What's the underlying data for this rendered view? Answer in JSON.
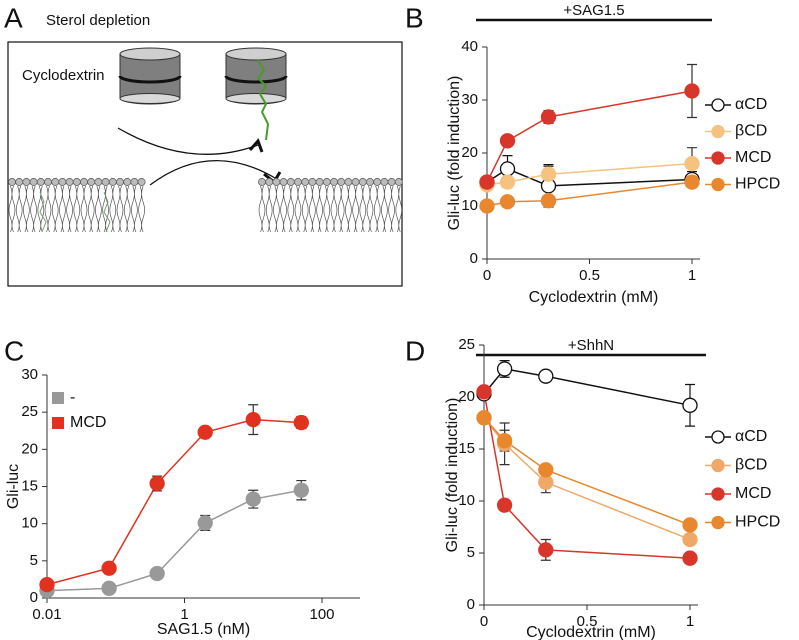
{
  "panel_a": {
    "panel": "A",
    "title": "Sterol depletion",
    "label": "Cyclodextrin"
  },
  "chart_data": [
    {
      "type": "line",
      "panel": "B",
      "title": "+SAG1.5",
      "x_label": "Cyclodextrin (mM)",
      "y_label": "Gli-luc (fold induction)",
      "x": [
        0,
        0.1,
        0.3,
        1
      ],
      "xlim": [
        0,
        1
      ],
      "xticks": [
        0,
        0.5,
        1
      ],
      "ylim": [
        0,
        40
      ],
      "yticks": [
        0,
        10,
        20,
        30,
        40
      ],
      "series": [
        {
          "name": "αCD",
          "color": "#111111",
          "marker_fill": "#ffffff",
          "values": [
            14.5,
            17,
            13.8,
            15
          ],
          "errors": [
            0,
            2.5,
            4,
            1.5
          ]
        },
        {
          "name": "βCD",
          "color": "#f5c27f",
          "values": [
            14,
            14.5,
            16,
            18
          ],
          "errors": [
            0,
            1,
            1.5,
            3
          ]
        },
        {
          "name": "MCD",
          "color": "#d8352b",
          "values": [
            14.5,
            22.3,
            26.8,
            31.7
          ],
          "errors": [
            0,
            0,
            1.2,
            5
          ]
        },
        {
          "name": "HPCD",
          "color": "#e8872e",
          "values": [
            10,
            10.8,
            11,
            14.5
          ],
          "errors": [
            0,
            0,
            0,
            0
          ]
        }
      ]
    },
    {
      "type": "line",
      "panel": "C",
      "x_label": "SAG1.5 (nM)",
      "y_label": "Gli-luc",
      "log_x": true,
      "x": [
        0.01,
        0.08,
        0.4,
        2,
        10,
        50
      ],
      "xlim": [
        0.01,
        100
      ],
      "xticks": [
        0.01,
        1,
        100
      ],
      "ylim": [
        0,
        30
      ],
      "yticks": [
        0,
        5,
        10,
        15,
        20,
        25,
        30
      ],
      "legend_marker": "square",
      "series": [
        {
          "name": "-",
          "color": "#999999",
          "values": [
            1,
            1.3,
            3.3,
            10.1,
            13.3,
            14.5
          ],
          "errors": [
            0,
            0,
            0,
            1,
            1.2,
            1.3
          ]
        },
        {
          "name": "MCD",
          "color": "#e0321e",
          "values": [
            1.8,
            4,
            15.4,
            22.3,
            24,
            23.6
          ],
          "errors": [
            0,
            0,
            1,
            0,
            2,
            0.8
          ]
        }
      ]
    },
    {
      "type": "line",
      "panel": "D",
      "title": "+ShhN",
      "x_label": "Cyclodextrin (mM)",
      "y_label": "Gli-luc (fold induction)",
      "x": [
        0,
        0.1,
        0.3,
        1
      ],
      "xlim": [
        0,
        1
      ],
      "xticks": [
        0,
        0.5,
        1
      ],
      "ylim": [
        0,
        25
      ],
      "yticks": [
        0,
        5,
        10,
        15,
        20,
        25
      ],
      "series": [
        {
          "name": "αCD",
          "color": "#111111",
          "marker_fill": "#ffffff",
          "values": [
            20.3,
            22.7,
            22,
            19.2
          ],
          "errors": [
            0,
            0.8,
            0,
            2
          ]
        },
        {
          "name": "βCD",
          "color": "#f0a868",
          "values": [
            18,
            15.5,
            11.8,
            6.3
          ],
          "errors": [
            0,
            2,
            1,
            0
          ]
        },
        {
          "name": "MCD",
          "color": "#d8352b",
          "values": [
            20.5,
            9.6,
            5.3,
            4.5
          ],
          "errors": [
            0,
            0,
            1,
            0
          ]
        },
        {
          "name": "HPCD",
          "color": "#e8872e",
          "values": [
            18,
            15.8,
            13,
            7.7
          ],
          "errors": [
            0,
            1,
            0,
            0
          ]
        }
      ]
    }
  ]
}
